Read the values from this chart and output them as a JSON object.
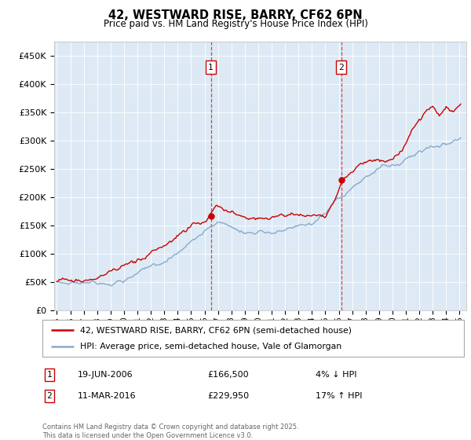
{
  "title": "42, WESTWARD RISE, BARRY, CF62 6PN",
  "subtitle": "Price paid vs. HM Land Registry's House Price Index (HPI)",
  "ylabel_ticks": [
    "£0",
    "£50K",
    "£100K",
    "£150K",
    "£200K",
    "£250K",
    "£300K",
    "£350K",
    "£400K",
    "£450K"
  ],
  "ytick_values": [
    0,
    50000,
    100000,
    150000,
    200000,
    250000,
    300000,
    350000,
    400000,
    450000
  ],
  "ylim": [
    0,
    475000
  ],
  "xlim_start": 1994.8,
  "xlim_end": 2025.5,
  "sale1_x": 2006.47,
  "sale1_y": 166500,
  "sale2_x": 2016.19,
  "sale2_y": 229950,
  "vline_color": "#cc0000",
  "sold_color": "#cc0000",
  "hpi_color": "#88aacc",
  "plot_bg": "#ddeaf5",
  "legend_line1": "42, WESTWARD RISE, BARRY, CF62 6PN (semi-detached house)",
  "legend_line2": "HPI: Average price, semi-detached house, Vale of Glamorgan",
  "annotation1_date": "19-JUN-2006",
  "annotation1_price": "£166,500",
  "annotation1_hpi": "4% ↓ HPI",
  "annotation2_date": "11-MAR-2016",
  "annotation2_price": "£229,950",
  "annotation2_hpi": "17% ↑ HPI",
  "footer": "Contains HM Land Registry data © Crown copyright and database right 2025.\nThis data is licensed under the Open Government Licence v3.0.",
  "xtick_years": [
    1995,
    1996,
    1997,
    1998,
    1999,
    2000,
    2001,
    2002,
    2003,
    2004,
    2005,
    2006,
    2007,
    2008,
    2009,
    2010,
    2011,
    2012,
    2013,
    2014,
    2015,
    2016,
    2017,
    2018,
    2019,
    2020,
    2021,
    2022,
    2023,
    2024,
    2025
  ]
}
